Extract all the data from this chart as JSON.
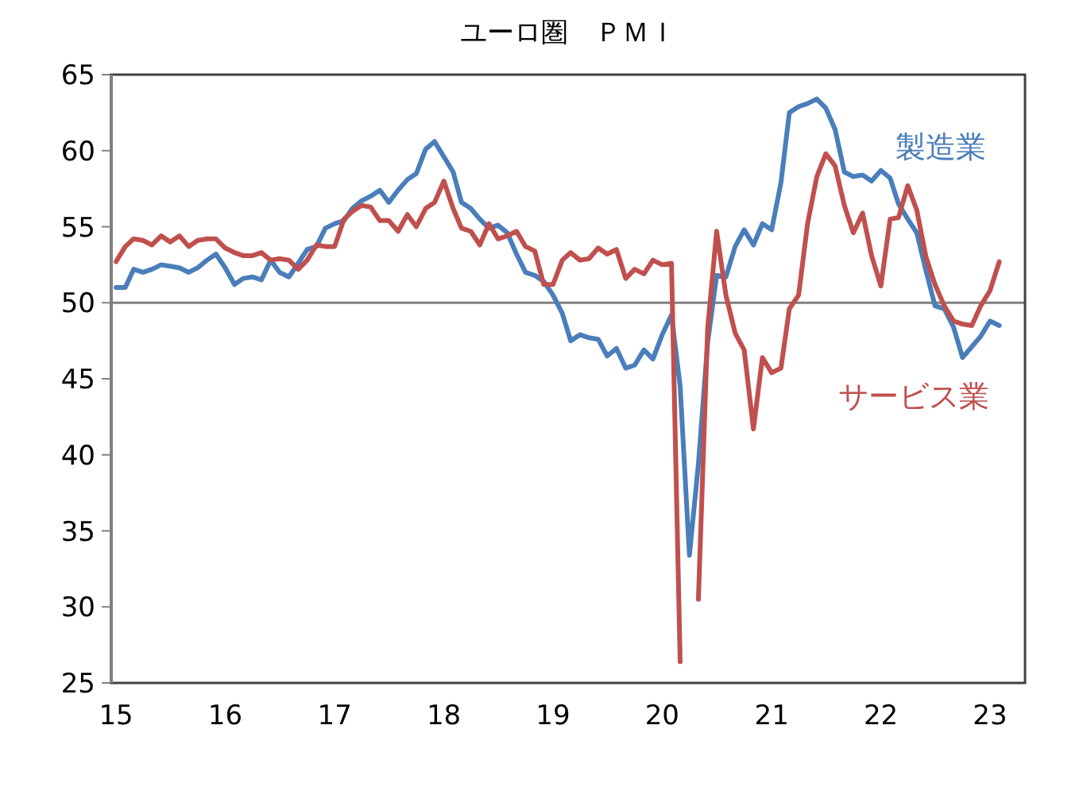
{
  "chart_data": {
    "type": "line",
    "title": "ユーロ圏　ＰＭＩ",
    "x": [
      "2015-01",
      "2015-02",
      "2015-03",
      "2015-04",
      "2015-05",
      "2015-06",
      "2015-07",
      "2015-08",
      "2015-09",
      "2015-10",
      "2015-11",
      "2015-12",
      "2016-01",
      "2016-02",
      "2016-03",
      "2016-04",
      "2016-05",
      "2016-06",
      "2016-07",
      "2016-08",
      "2016-09",
      "2016-10",
      "2016-11",
      "2016-12",
      "2017-01",
      "2017-02",
      "2017-03",
      "2017-04",
      "2017-05",
      "2017-06",
      "2017-07",
      "2017-08",
      "2017-09",
      "2017-10",
      "2017-11",
      "2017-12",
      "2018-01",
      "2018-02",
      "2018-03",
      "2018-04",
      "2018-05",
      "2018-06",
      "2018-07",
      "2018-08",
      "2018-09",
      "2018-10",
      "2018-11",
      "2018-12",
      "2019-01",
      "2019-02",
      "2019-03",
      "2019-04",
      "2019-05",
      "2019-06",
      "2019-07",
      "2019-08",
      "2019-09",
      "2019-10",
      "2019-11",
      "2019-12",
      "2020-01",
      "2020-02",
      "2020-03",
      "2020-04",
      "2020-05",
      "2020-06",
      "2020-07",
      "2020-08",
      "2020-09",
      "2020-10",
      "2020-11",
      "2020-12",
      "2021-01",
      "2021-02",
      "2021-03",
      "2021-04",
      "2021-05",
      "2021-06",
      "2021-07",
      "2021-08",
      "2021-09",
      "2021-10",
      "2021-11",
      "2021-12",
      "2022-01",
      "2022-02",
      "2022-03",
      "2022-04",
      "2022-05",
      "2022-06",
      "2022-07",
      "2022-08",
      "2022-09",
      "2022-10",
      "2022-11",
      "2022-12",
      "2023-01",
      "2023-02"
    ],
    "series": [
      {
        "name": "製造業",
        "color": "#4a7ebb",
        "values": [
          51.0,
          51.0,
          52.2,
          52.0,
          52.2,
          52.5,
          52.4,
          52.3,
          52.0,
          52.3,
          52.8,
          53.2,
          52.3,
          51.2,
          51.6,
          51.7,
          51.5,
          52.8,
          52.0,
          51.7,
          52.6,
          53.5,
          53.7,
          54.9,
          55.2,
          55.4,
          56.2,
          56.7,
          57.0,
          57.4,
          56.6,
          57.4,
          58.1,
          58.5,
          60.1,
          60.6,
          59.6,
          58.6,
          56.6,
          56.2,
          55.5,
          54.9,
          55.1,
          54.6,
          53.2,
          52.0,
          51.8,
          51.4,
          50.5,
          49.3,
          47.5,
          47.9,
          47.7,
          47.6,
          46.5,
          47.0,
          45.7,
          45.9,
          46.9,
          46.3,
          47.9,
          49.2,
          44.5,
          33.4,
          39.4,
          47.4,
          51.8,
          51.7,
          53.7,
          54.8,
          53.8,
          55.2,
          54.8,
          57.9,
          62.5,
          62.9,
          63.1,
          63.4,
          62.8,
          61.4,
          58.6,
          58.3,
          58.4,
          58.0,
          58.7,
          58.2,
          56.5,
          55.5,
          54.6,
          52.1,
          49.8,
          49.6,
          48.4,
          46.4,
          47.1,
          47.8,
          48.8,
          48.5
        ]
      },
      {
        "name": "サービス業",
        "color": "#c0504d",
        "values": [
          52.7,
          53.7,
          54.2,
          54.1,
          53.8,
          54.4,
          54.0,
          54.4,
          53.7,
          54.1,
          54.2,
          54.2,
          53.6,
          53.3,
          53.1,
          53.1,
          53.3,
          52.8,
          52.9,
          52.8,
          52.2,
          52.8,
          53.8,
          53.7,
          53.7,
          55.5,
          56.0,
          56.4,
          56.3,
          55.4,
          55.4,
          54.7,
          55.8,
          55.0,
          56.2,
          56.6,
          58.0,
          56.2,
          54.9,
          54.7,
          53.8,
          55.2,
          54.2,
          54.4,
          54.7,
          53.7,
          53.4,
          51.2,
          51.2,
          52.8,
          53.3,
          52.8,
          52.9,
          53.6,
          53.2,
          53.5,
          51.6,
          52.2,
          51.9,
          52.8,
          52.5,
          52.6,
          26.4,
          null,
          30.5,
          48.3,
          54.7,
          50.5,
          48.0,
          46.9,
          41.7,
          46.4,
          45.4,
          45.7,
          49.6,
          50.5,
          55.2,
          58.3,
          59.8,
          59.0,
          56.4,
          54.6,
          55.9,
          53.1,
          51.1,
          55.5,
          55.6,
          57.7,
          56.1,
          53.0,
          51.2,
          49.8,
          48.8,
          48.6,
          48.5,
          49.8,
          50.8,
          52.7
        ]
      }
    ],
    "xlim": [
      "2014-12-16",
      "2023-04-28"
    ],
    "xticks": [
      {
        "value": "2015-01",
        "label": "15"
      },
      {
        "value": "2016-01",
        "label": "16"
      },
      {
        "value": "2017-01",
        "label": "17"
      },
      {
        "value": "2018-01",
        "label": "18"
      },
      {
        "value": "2019-01",
        "label": "19"
      },
      {
        "value": "2020-01",
        "label": "20"
      },
      {
        "value": "2021-01",
        "label": "21"
      },
      {
        "value": "2022-01",
        "label": "22"
      },
      {
        "value": "2023-01",
        "label": "23"
      }
    ],
    "ylim": [
      25,
      65
    ],
    "yticks": [
      25,
      30,
      35,
      40,
      45,
      50,
      55,
      60,
      65
    ],
    "ref_lines": [
      {
        "axis": "y",
        "value": 50,
        "color": "#808080"
      }
    ]
  }
}
